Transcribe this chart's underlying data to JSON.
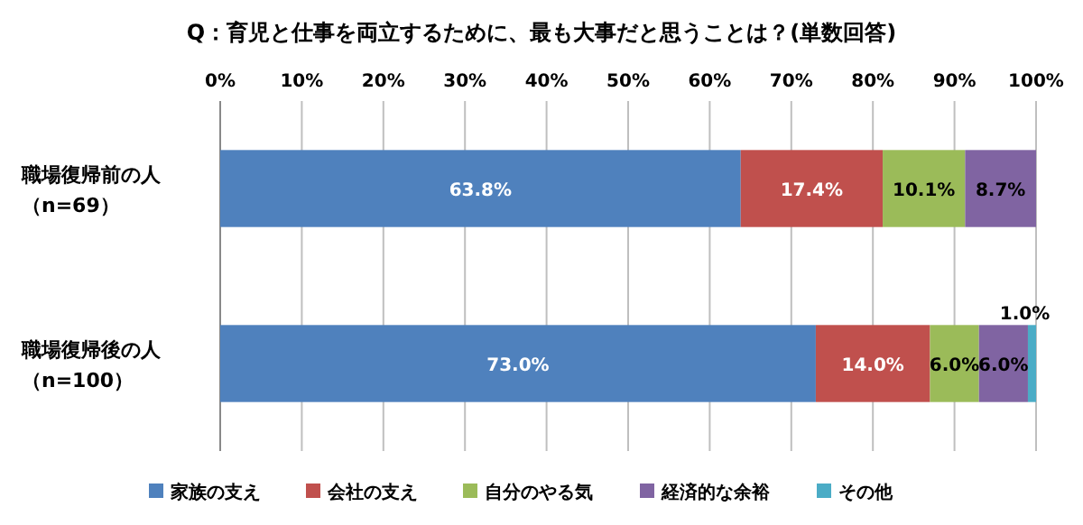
{
  "chart_data": {
    "type": "bar",
    "orientation": "horizontal",
    "stacked": true,
    "title": "Q：育児と仕事を両立するために、最も大事だと思うことは？(単数回答)",
    "categories": [
      "職場復帰前の人（n=69）",
      "職場復帰後の人（n=100）"
    ],
    "series": [
      {
        "name": "家族の支え",
        "color": "#4f81bd",
        "values": [
          63.8,
          73.0
        ],
        "value_labels": [
          "63.8%",
          "73.0%"
        ]
      },
      {
        "name": "会社の支え",
        "color": "#c0504d",
        "values": [
          17.4,
          14.0
        ],
        "value_labels": [
          "17.4%",
          "14.0%"
        ]
      },
      {
        "name": "自分のやる気",
        "color": "#9bbb59",
        "values": [
          10.1,
          6.0
        ],
        "value_labels": [
          "10.1%",
          "6.0%"
        ]
      },
      {
        "name": "経済的な余裕",
        "color": "#8064a2",
        "values": [
          8.7,
          6.0
        ],
        "value_labels": [
          "8.7%",
          "6.0%"
        ]
      },
      {
        "name": "その他",
        "color": "#4bacc6",
        "values": [
          null,
          1.0
        ],
        "value_labels": [
          null,
          "1.0%"
        ]
      }
    ],
    "xlim": [
      0,
      100
    ],
    "xticks": [
      {
        "value": 0,
        "label": "0%"
      },
      {
        "value": 10,
        "label": "10%"
      },
      {
        "value": 20,
        "label": "20%"
      },
      {
        "value": 30,
        "label": "30%"
      },
      {
        "value": 40,
        "label": "40%"
      },
      {
        "value": 50,
        "label": "50%"
      },
      {
        "value": 60,
        "label": "60%"
      },
      {
        "value": 70,
        "label": "70%"
      },
      {
        "value": 80,
        "label": "80%"
      },
      {
        "value": 90,
        "label": "90%"
      },
      {
        "value": 100,
        "label": "100%"
      }
    ],
    "grid": "x",
    "legend": "bottom"
  }
}
